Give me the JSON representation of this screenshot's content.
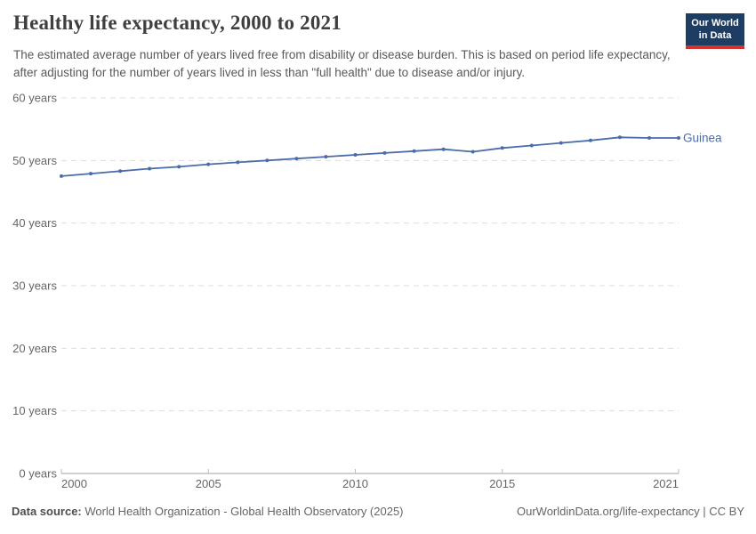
{
  "header": {
    "title": "Healthy life expectancy, 2000 to 2021",
    "subtitle": "The estimated average number of years lived free from disability or disease burden. This is based on period life expectancy, after adjusting for the number of years lived in less than \"full health\" due to disease and/or injury.",
    "logo": {
      "line1": "Our World",
      "line2": "in Data",
      "bg_color": "#1d3d63",
      "stripe_color": "#d1342f"
    }
  },
  "chart_data": {
    "type": "line",
    "title": "Healthy life expectancy, 2000 to 2021",
    "x": [
      2000,
      2001,
      2002,
      2003,
      2004,
      2005,
      2006,
      2007,
      2008,
      2009,
      2010,
      2011,
      2012,
      2013,
      2014,
      2015,
      2016,
      2017,
      2018,
      2019,
      2020,
      2021
    ],
    "series": [
      {
        "name": "Guinea",
        "color": "#4a6da9",
        "values": [
          47.5,
          47.9,
          48.3,
          48.7,
          49.0,
          49.4,
          49.7,
          50.0,
          50.3,
          50.6,
          50.9,
          51.2,
          51.5,
          51.8,
          51.4,
          52.0,
          52.4,
          52.8,
          53.2,
          53.7,
          53.6,
          53.6
        ]
      }
    ],
    "xlabel": "",
    "ylabel": "",
    "ylim": [
      0,
      60
    ],
    "xlim": [
      2000,
      2021
    ],
    "yticks": [
      0,
      10,
      20,
      30,
      40,
      50,
      60
    ],
    "ytick_suffix": " years",
    "xticks": [
      2000,
      2005,
      2010,
      2015,
      2021
    ],
    "grid": "horizontal-dashed",
    "grid_color": "#dddddd",
    "axis_color": "#a1a1a1",
    "tick_color": "#bbbbbb",
    "tick_label_color": "#666666",
    "legend": "end-of-line-label"
  },
  "footer": {
    "source_label": "Data source:",
    "source_text": " World Health Organization - Global Health Observatory (2025)",
    "link_text": "OurWorldinData.org/life-expectancy | CC BY"
  }
}
